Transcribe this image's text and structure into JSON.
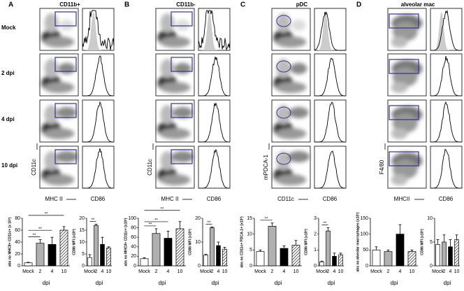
{
  "panels": [
    {
      "letter": "A",
      "title": "CD11b+",
      "y_axis": "CD11c",
      "x_axis": "MHC II",
      "hist_axis": "CD86"
    },
    {
      "letter": "B",
      "title": "CD11b-",
      "y_axis": "CD11c",
      "x_axis": "MHC II",
      "hist_axis": "CD86"
    },
    {
      "letter": "C",
      "title": "pDC",
      "y_axis": "mPDCA-1",
      "x_axis": "CD11c",
      "hist_axis": "CD86"
    },
    {
      "letter": "D",
      "title": "alveolar mac",
      "y_axis": "F4/80",
      "x_axis": "MHCII",
      "hist_axis": "CD86"
    }
  ],
  "rows": [
    "Mock",
    "2 dpi",
    "4 dpi",
    "10 dpi"
  ],
  "chart_data": [
    {
      "type": "bar",
      "ylabel": "abs no MHCII+ CD11c+ (x 10³)",
      "xlabel": "dpi",
      "categories": [
        "Mock",
        "2",
        "4",
        "10"
      ],
      "values": [
        5,
        38,
        36,
        60
      ],
      "errors": [
        1,
        6,
        12,
        6
      ],
      "colors": [
        "#ffffff",
        "#b0b0b0",
        "#000000",
        "#ffffff"
      ],
      "hatched": [
        false,
        false,
        false,
        true
      ],
      "ylim": [
        0,
        80
      ],
      "yticks": [
        0,
        20,
        40,
        60,
        80
      ],
      "significance": [
        {
          "label": "**",
          "from": 0,
          "to": 1
        },
        {
          "label": "**",
          "from": 0,
          "to": 2
        },
        {
          "label": "**",
          "from": 0,
          "to": 3
        }
      ]
    },
    {
      "type": "bar",
      "ylabel": "CD86 MFI (x10³)",
      "xlabel": "dpi",
      "categories": [
        "Mock",
        "2",
        "4",
        "10"
      ],
      "values": [
        3.5,
        17,
        9,
        7.5
      ],
      "errors": [
        1.2,
        0.5,
        3,
        0.5
      ],
      "colors": [
        "#ffffff",
        "#b0b0b0",
        "#000000",
        "#ffffff"
      ],
      "hatched": [
        false,
        false,
        false,
        true
      ],
      "ylim": [
        0,
        20
      ],
      "yticks": [
        0,
        5,
        10,
        15,
        20
      ],
      "significance": [
        {
          "label": "**",
          "from": 0,
          "to": 1
        }
      ]
    },
    {
      "type": "bar",
      "ylabel": "abs no MHCII+ CD11c+ (x10³)",
      "xlabel": "dpi",
      "categories": [
        "Mock",
        "2",
        "4",
        "10"
      ],
      "values": [
        15,
        68,
        58,
        78
      ],
      "errors": [
        2,
        10,
        15,
        15
      ],
      "colors": [
        "#ffffff",
        "#b0b0b0",
        "#000000",
        "#ffffff"
      ],
      "hatched": [
        false,
        false,
        false,
        true
      ],
      "ylim": [
        0,
        100
      ],
      "yticks": [
        0,
        20,
        40,
        60,
        80,
        100
      ],
      "significance": [
        {
          "label": "**",
          "from": 0,
          "to": 1
        },
        {
          "label": "**",
          "from": 0,
          "to": 2
        },
        {
          "label": "**",
          "from": 0,
          "to": 3
        }
      ]
    },
    {
      "type": "bar",
      "ylabel": "CD86 MFI (x10³)",
      "xlabel": "dpi",
      "categories": [
        "Mock",
        "2",
        "4",
        "10"
      ],
      "values": [
        4.5,
        16,
        8.5,
        7
      ],
      "errors": [
        0.3,
        0.3,
        1.5,
        0.8
      ],
      "colors": [
        "#ffffff",
        "#b0b0b0",
        "#000000",
        "#ffffff"
      ],
      "hatched": [
        false,
        false,
        false,
        true
      ],
      "ylim": [
        0,
        20
      ],
      "yticks": [
        0,
        10,
        20
      ],
      "significance": [
        {
          "label": "**",
          "from": 0,
          "to": 1
        }
      ]
    },
    {
      "type": "bar",
      "ylabel": "abs no CD11c+ PDCA-1+ (x10³)",
      "xlabel": "dpi",
      "categories": [
        "Mock",
        "2",
        "4",
        "10"
      ],
      "values": [
        4.5,
        12.5,
        5.5,
        6.5
      ],
      "errors": [
        0.5,
        1,
        0.8,
        1.5
      ],
      "colors": [
        "#ffffff",
        "#b0b0b0",
        "#000000",
        "#ffffff"
      ],
      "hatched": [
        false,
        false,
        false,
        true
      ],
      "ylim": [
        0,
        15
      ],
      "yticks": [
        0,
        5,
        10,
        15
      ],
      "significance": [
        {
          "label": "**",
          "from": 0,
          "to": 1
        }
      ]
    },
    {
      "type": "bar",
      "ylabel": "CD86 MFI (x10³)",
      "xlabel": "dpi",
      "categories": [
        "Mock",
        "2",
        "4",
        "10"
      ],
      "values": [
        0.25,
        2.2,
        0.6,
        0.7
      ],
      "errors": [
        0.05,
        0.2,
        0.2,
        0.1
      ],
      "colors": [
        "#ffffff",
        "#b0b0b0",
        "#000000",
        "#ffffff"
      ],
      "hatched": [
        false,
        false,
        false,
        true
      ],
      "ylim": [
        0,
        3
      ],
      "yticks": [
        0,
        1,
        2,
        3
      ],
      "significance": [
        {
          "label": "**",
          "from": 0,
          "to": 1
        }
      ]
    },
    {
      "type": "bar",
      "ylabel": "abs no alveolar macrophages (x10³)",
      "xlabel": "dpi",
      "categories": [
        "Mock",
        "2",
        "4",
        "10"
      ],
      "values": [
        50,
        45,
        100,
        45
      ],
      "errors": [
        10,
        5,
        30,
        5
      ],
      "colors": [
        "#ffffff",
        "#b0b0b0",
        "#000000",
        "#ffffff"
      ],
      "hatched": [
        false,
        false,
        false,
        true
      ],
      "ylim": [
        0,
        150
      ],
      "yticks": [
        0,
        50,
        100,
        150
      ],
      "significance": []
    },
    {
      "type": "bar",
      "ylabel": "CD86 MFI (x10³)",
      "xlabel": "dpi",
      "categories": [
        "Mock",
        "2",
        "4",
        "10"
      ],
      "values": [
        4.5,
        5,
        4,
        5.5
      ],
      "errors": [
        1,
        1.5,
        1.5,
        1
      ],
      "colors": [
        "#ffffff",
        "#b0b0b0",
        "#000000",
        "#ffffff"
      ],
      "hatched": [
        false,
        false,
        false,
        true
      ],
      "ylim": [
        0,
        10
      ],
      "yticks": [
        0,
        5,
        10
      ],
      "significance": []
    }
  ]
}
